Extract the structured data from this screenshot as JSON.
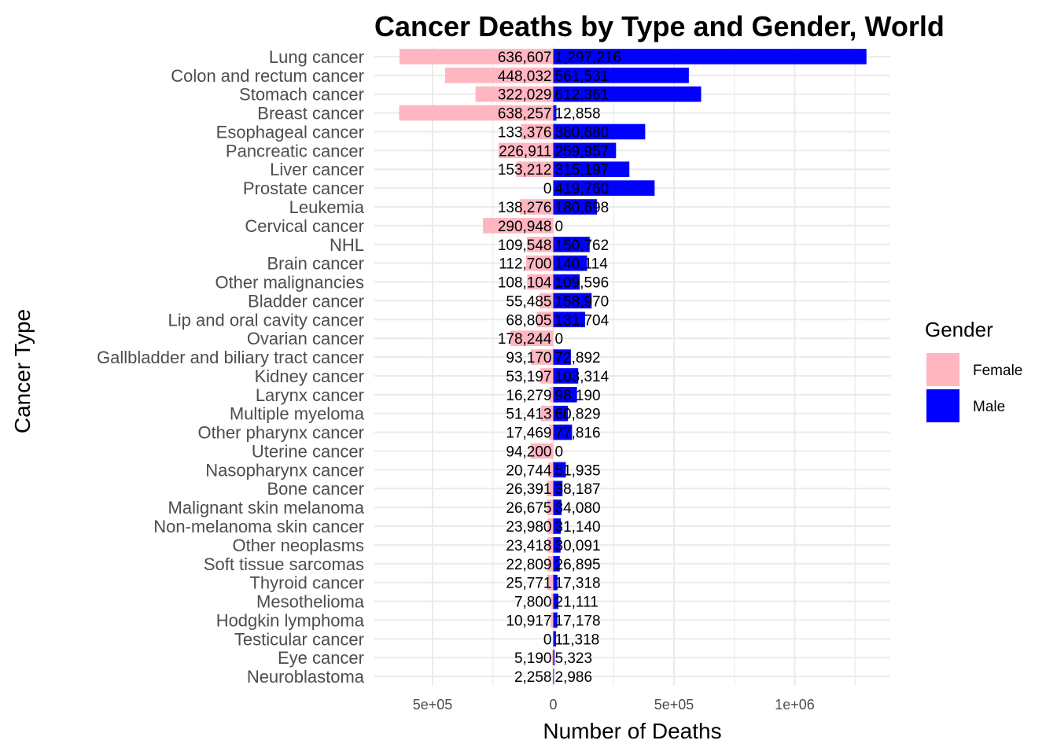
{
  "chart_data": {
    "type": "bar",
    "orientation": "horizontal-diverging",
    "title": "Cancer Deaths by Type and Gender, World",
    "xlabel": "Number of Deaths",
    "ylabel": "Cancer Type",
    "xlim": [
      -730000,
      1400000
    ],
    "xticks": [
      {
        "value": -500000,
        "label": "5e+05"
      },
      {
        "value": 0,
        "label": "0"
      },
      {
        "value": 500000,
        "label": "5e+05"
      },
      {
        "value": 1000000,
        "label": "1e+06"
      }
    ],
    "grid": true,
    "legend": {
      "title": "Gender",
      "position": "right",
      "items": [
        {
          "label": "Female",
          "color": "#FFB6C1"
        },
        {
          "label": "Male",
          "color": "#0000FF"
        }
      ]
    },
    "categories": [
      "Lung cancer",
      "Colon and rectum cancer",
      "Stomach cancer",
      "Breast cancer",
      "Esophageal cancer",
      "Pancreatic cancer",
      "Liver cancer",
      "Prostate cancer",
      "Leukemia",
      "Cervical cancer",
      "NHL",
      "Brain cancer",
      "Other malignancies",
      "Bladder cancer",
      "Lip and oral cavity cancer",
      "Ovarian cancer",
      "Gallbladder and biliary tract cancer",
      "Kidney cancer",
      "Larynx cancer",
      "Multiple myeloma",
      "Other pharynx cancer",
      "Uterine cancer",
      "Nasopharynx cancer",
      "Bone cancer",
      "Malignant skin melanoma",
      "Non-melanoma skin cancer",
      "Other neoplasms",
      "Soft tissue sarcomas",
      "Thyroid cancer",
      "Mesothelioma",
      "Hodgkin lymphoma",
      "Testicular cancer",
      "Eye cancer",
      "Neuroblastoma"
    ],
    "series": [
      {
        "name": "Female",
        "color": "#FFB6C1",
        "direction": "left",
        "values": [
          636607,
          448032,
          322029,
          638257,
          133376,
          226911,
          153212,
          0,
          138276,
          290948,
          109548,
          112700,
          108104,
          55485,
          68805,
          178244,
          93170,
          53197,
          16279,
          51413,
          17469,
          94200,
          20744,
          26391,
          26675,
          23980,
          23418,
          22809,
          25771,
          7800,
          10917,
          0,
          5190,
          2258
        ],
        "labels": [
          "636,607",
          "448,032",
          "322,029",
          "638,257",
          "133,376",
          "226,911",
          "153,212",
          "0",
          "138,276",
          "290,948",
          "109,548",
          "112,700",
          "108,104",
          "55,485",
          "68,805",
          "178,244",
          "93,170",
          "53,197",
          "16,279",
          "51,413",
          "17,469",
          "94,200",
          "20,744",
          "26,391",
          "26,675",
          "23,980",
          "23,418",
          "22,809",
          "25,771",
          "7,800",
          "10,917",
          "0",
          "5,190",
          "2,258"
        ]
      },
      {
        "name": "Male",
        "color": "#0000FF",
        "direction": "right",
        "values": [
          1297216,
          561531,
          612361,
          12858,
          380680,
          259957,
          315197,
          419760,
          180698,
          0,
          150762,
          140114,
          109596,
          158970,
          131704,
          0,
          72892,
          103314,
          98190,
          60829,
          77816,
          0,
          51935,
          38187,
          34080,
          31140,
          30091,
          26895,
          17318,
          21111,
          17178,
          11318,
          5323,
          2986
        ],
        "labels": [
          "1,297,216",
          "561,531",
          "612,361",
          "12,858",
          "380,680",
          "259,957",
          "315,197",
          "419,760",
          "180,698",
          "0",
          "150,762",
          "140,114",
          "109,596",
          "158,970",
          "131,704",
          "0",
          "72,892",
          "103,314",
          "98,190",
          "60,829",
          "77,816",
          "0",
          "51,935",
          "38,187",
          "34,080",
          "31,140",
          "30,091",
          "26,895",
          "17,318",
          "21,111",
          "17,178",
          "11,318",
          "5,323",
          "2,986"
        ]
      }
    ]
  }
}
